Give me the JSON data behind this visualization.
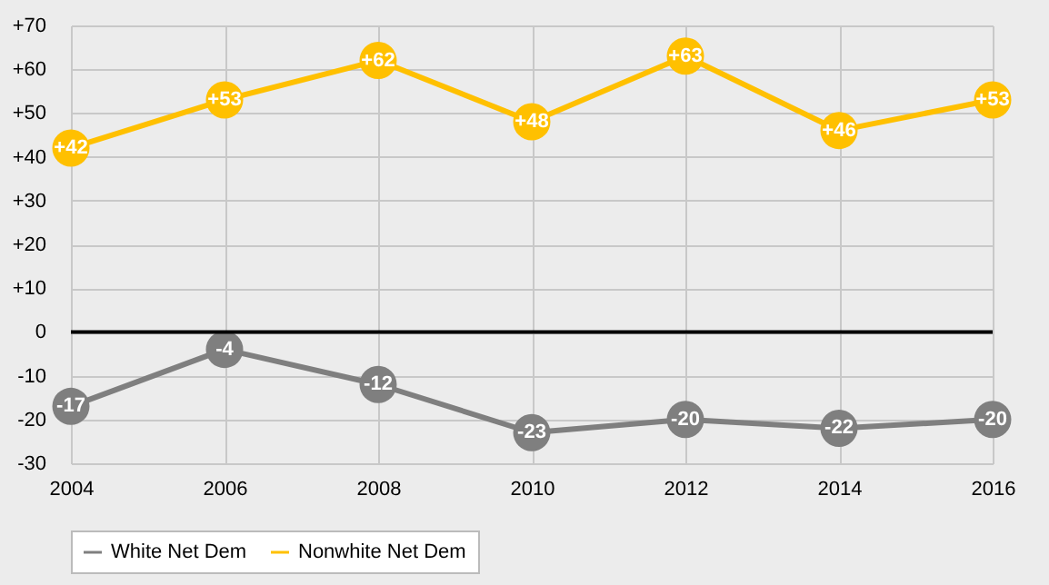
{
  "chart_data": {
    "type": "line",
    "x": [
      2004,
      2006,
      2008,
      2010,
      2012,
      2014,
      2016
    ],
    "series": [
      {
        "name": "White Net Dem",
        "color": "#7f7f7f",
        "values": [
          -17,
          -4,
          -12,
          -23,
          -20,
          -22,
          -20
        ],
        "value_labels": [
          "-17",
          "-4",
          "-12",
          "-23",
          "-20",
          "-22",
          "-20"
        ]
      },
      {
        "name": "Nonwhite Net Dem",
        "color": "#ffc000",
        "values": [
          42,
          53,
          62,
          48,
          63,
          46,
          53
        ],
        "value_labels": [
          "+42",
          "+53",
          "+62",
          "+48",
          "+63",
          "+46",
          "+53"
        ]
      }
    ],
    "xlim": [
      2004,
      2016
    ],
    "xticks": [
      2004,
      2006,
      2008,
      2010,
      2012,
      2014,
      2016
    ],
    "ylim": [
      -30,
      70
    ],
    "yticks": [
      -30,
      -20,
      -10,
      0,
      {
        "value": 10,
        "label": "+10"
      },
      {
        "value": 20,
        "label": "+20"
      },
      {
        "value": 30,
        "label": "+30"
      },
      {
        "value": 40,
        "label": "+40"
      },
      {
        "value": 50,
        "label": "+50"
      },
      {
        "value": 60,
        "label": "+60"
      },
      {
        "value": 70,
        "label": "+70"
      }
    ],
    "ref_lines": [
      {
        "axis": "y",
        "value": 0,
        "color": "#000000"
      }
    ],
    "grid": true,
    "legend": "bottom",
    "marker": "circle",
    "line_style": "solid"
  }
}
